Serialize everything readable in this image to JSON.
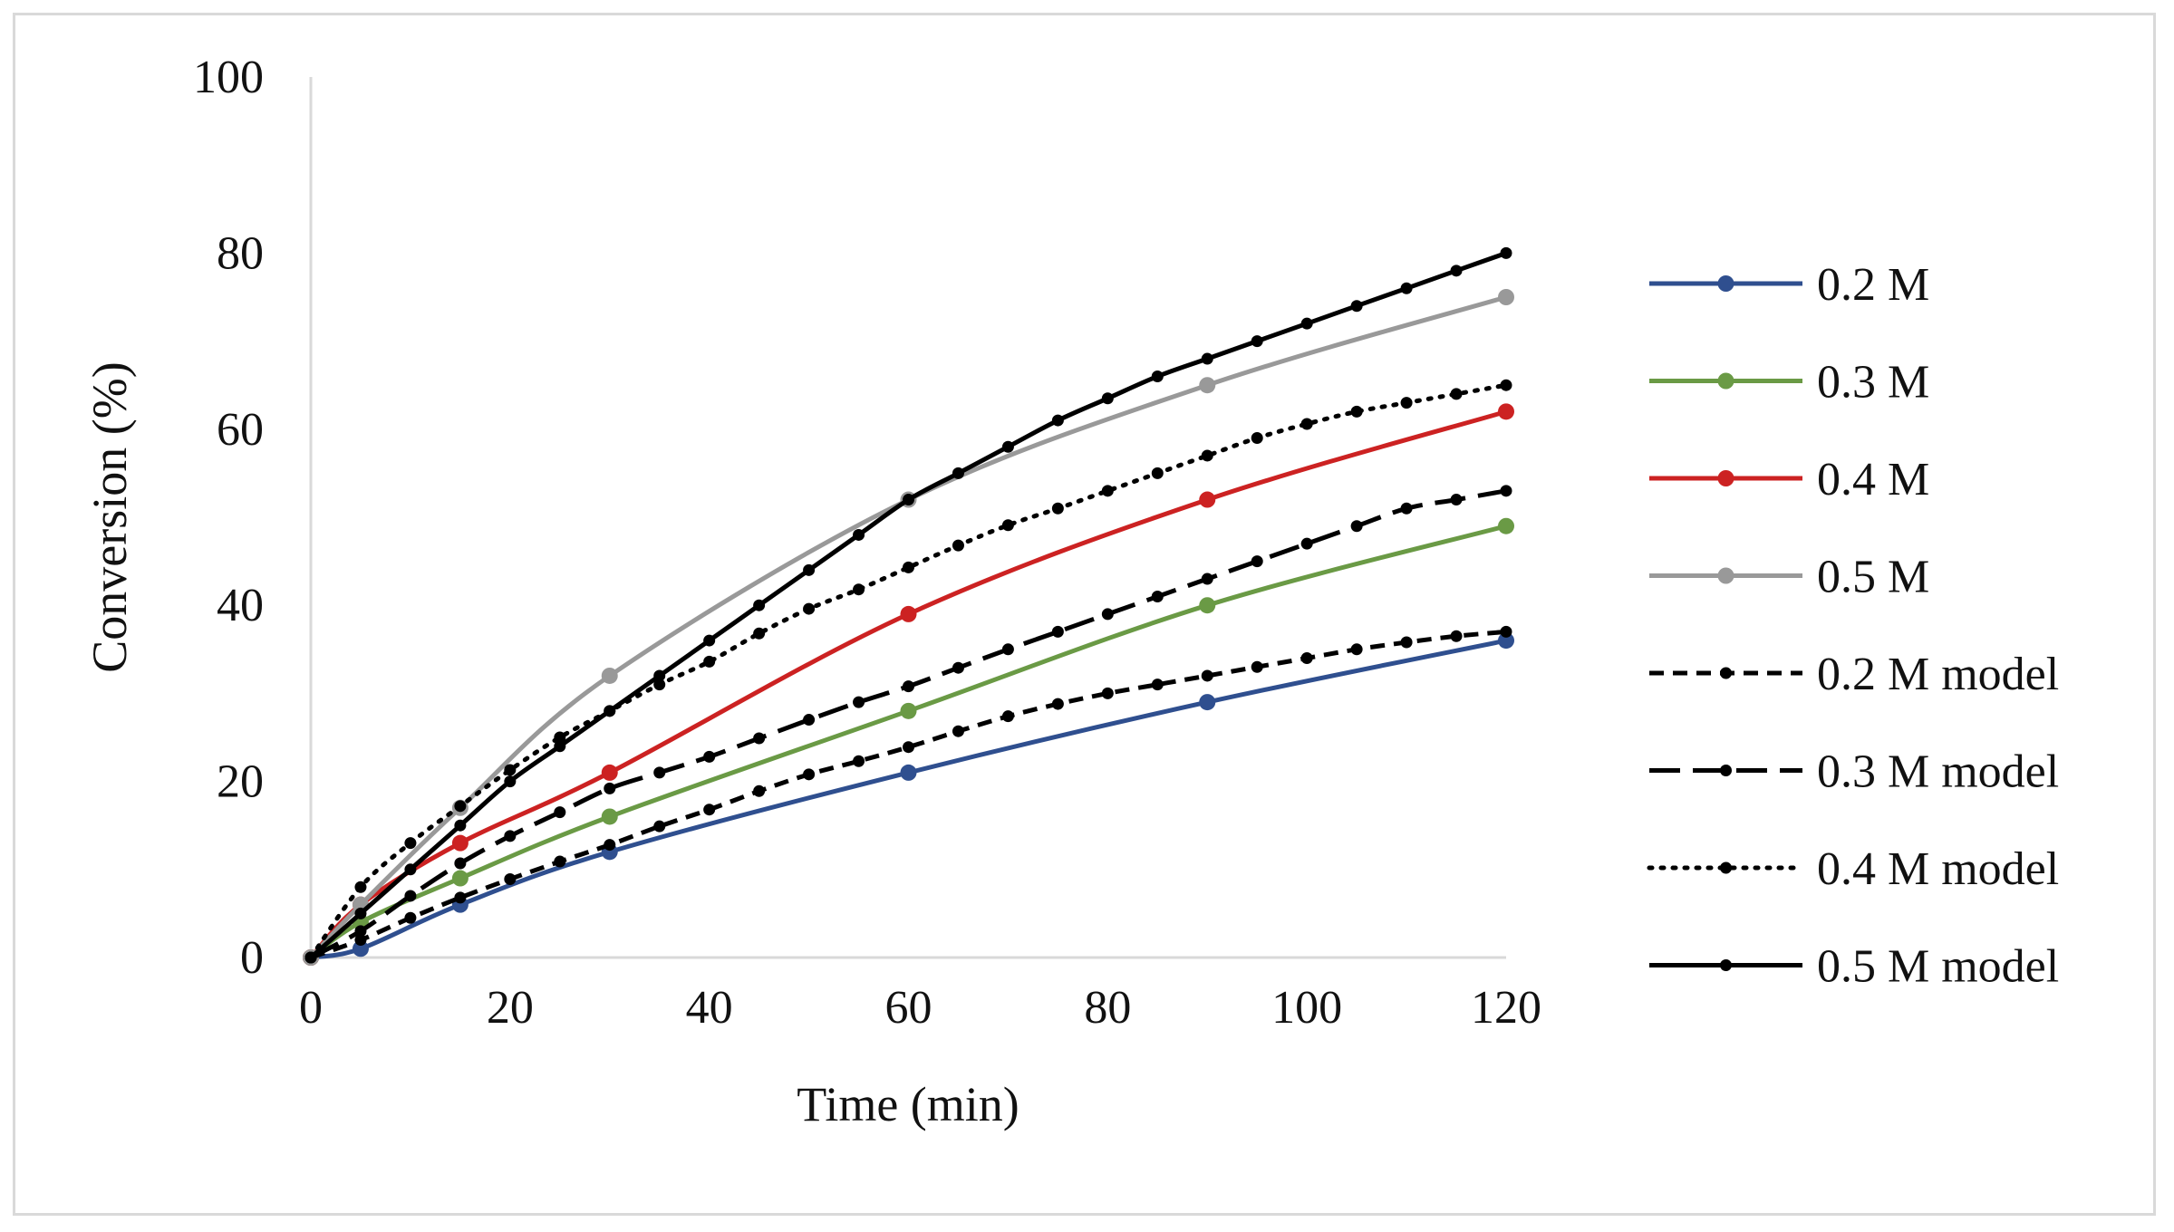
{
  "chart_data": {
    "type": "line",
    "title": "",
    "xlabel": "Time (min)",
    "ylabel": "Conversion (%)",
    "xlim": [
      0,
      120
    ],
    "ylim": [
      0,
      100
    ],
    "xticks": [
      0,
      20,
      40,
      60,
      80,
      100,
      120
    ],
    "yticks": [
      0,
      20,
      40,
      60,
      80,
      100
    ],
    "grid": false,
    "legend_position": "right",
    "series": [
      {
        "name": "0.2 M",
        "style": "solid",
        "color": "#2f4f8f",
        "marker": "circle",
        "x": [
          0,
          5,
          15,
          30,
          60,
          90,
          120
        ],
        "y": [
          0,
          1,
          6,
          12,
          21,
          29,
          36
        ]
      },
      {
        "name": "0.3 M",
        "style": "solid",
        "color": "#6a9a45",
        "marker": "circle",
        "x": [
          0,
          5,
          15,
          30,
          60,
          90,
          120
        ],
        "y": [
          0,
          4,
          9,
          16,
          28,
          40,
          49
        ]
      },
      {
        "name": "0.4 M",
        "style": "solid",
        "color": "#cc2222",
        "marker": "circle",
        "x": [
          0,
          5,
          15,
          30,
          60,
          90,
          120
        ],
        "y": [
          0,
          6,
          13,
          21,
          39,
          52,
          62
        ]
      },
      {
        "name": "0.5 M",
        "style": "solid",
        "color": "#999999",
        "marker": "circle",
        "x": [
          0,
          5,
          15,
          30,
          60,
          90,
          120
        ],
        "y": [
          0,
          6,
          17,
          32,
          52,
          65,
          75
        ]
      },
      {
        "name": "0.2 M model",
        "style": "short-dash",
        "color": "#000000",
        "marker": "small-dot",
        "x": [
          0,
          5,
          10,
          15,
          20,
          25,
          30,
          35,
          40,
          45,
          50,
          55,
          60,
          65,
          70,
          75,
          80,
          85,
          90,
          95,
          100,
          105,
          110,
          115,
          120
        ],
        "y": [
          0,
          2,
          4.5,
          6.8,
          8.9,
          10.9,
          12.8,
          14.9,
          16.8,
          18.9,
          20.8,
          22.3,
          23.9,
          25.7,
          27.4,
          28.8,
          30,
          31,
          32,
          33,
          34,
          35,
          35.8,
          36.5,
          37
        ]
      },
      {
        "name": "0.3 M model",
        "style": "long-dash",
        "color": "#000000",
        "marker": "small-dot",
        "x": [
          0,
          5,
          10,
          15,
          20,
          25,
          30,
          35,
          40,
          45,
          50,
          55,
          60,
          65,
          70,
          75,
          80,
          85,
          90,
          95,
          100,
          105,
          110,
          115,
          120
        ],
        "y": [
          0,
          3,
          7,
          10.7,
          13.8,
          16.5,
          19.2,
          21,
          22.8,
          24.9,
          27,
          29,
          30.8,
          32.9,
          35,
          37,
          39,
          41,
          43,
          45,
          47,
          49,
          51,
          52,
          53
        ]
      },
      {
        "name": "0.4 M model",
        "style": "dotted",
        "color": "#000000",
        "marker": "small-dot",
        "x": [
          0,
          5,
          10,
          15,
          20,
          25,
          30,
          35,
          40,
          45,
          50,
          55,
          60,
          65,
          70,
          75,
          80,
          85,
          90,
          95,
          100,
          105,
          110,
          115,
          120
        ],
        "y": [
          0,
          8,
          13,
          17.2,
          21.3,
          25,
          28,
          31,
          33.6,
          36.8,
          39.6,
          41.8,
          44.3,
          46.8,
          49.1,
          51,
          53,
          55,
          57,
          59,
          60.6,
          62,
          63,
          64,
          65
        ]
      },
      {
        "name": "0.5 M model",
        "style": "solid",
        "color": "#000000",
        "marker": "small-dot",
        "x": [
          0,
          5,
          10,
          15,
          20,
          25,
          30,
          35,
          40,
          45,
          50,
          55,
          60,
          65,
          70,
          75,
          80,
          85,
          90,
          95,
          100,
          105,
          110,
          115,
          120
        ],
        "y": [
          0,
          5,
          10,
          15,
          20,
          24,
          28,
          32,
          36,
          40,
          44,
          48,
          52,
          55,
          58,
          61,
          63.5,
          66,
          68,
          70,
          72,
          74,
          76,
          78,
          80
        ]
      }
    ]
  }
}
